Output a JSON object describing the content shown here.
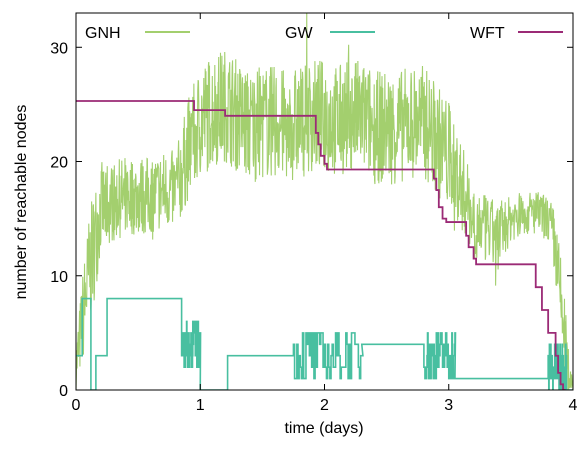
{
  "chart_data": {
    "type": "line",
    "xlabel": "time (days)",
    "ylabel": "number of reachable nodes",
    "xlim": [
      0,
      4
    ],
    "ylim": [
      0,
      33
    ],
    "xticks": [
      0,
      1,
      2,
      3,
      4
    ],
    "yticks": [
      0,
      10,
      20,
      30
    ],
    "xtick_labels": [
      "0",
      "1",
      "2",
      "3",
      "4"
    ],
    "ytick_labels": [
      "0",
      "10",
      "20",
      "30"
    ],
    "grid": false,
    "legend_position": "top",
    "series": [
      {
        "name": "GNH",
        "color": "#a3cf6e",
        "style": "noisy-band",
        "x": [
          0.0,
          0.05,
          0.1,
          0.15,
          0.2,
          0.3,
          0.4,
          0.5,
          0.6,
          0.7,
          0.8,
          0.85,
          0.9,
          1.0,
          1.1,
          1.2,
          1.3,
          1.4,
          1.5,
          1.6,
          1.7,
          1.8,
          1.9,
          2.0,
          2.1,
          2.2,
          2.3,
          2.4,
          2.5,
          2.6,
          2.7,
          2.8,
          2.9,
          3.0,
          3.1,
          3.2,
          3.3,
          3.4,
          3.5,
          3.6,
          3.7,
          3.8,
          3.85,
          3.9,
          3.95,
          4.0
        ],
        "center": [
          2,
          6,
          10,
          13,
          16,
          16.5,
          17,
          17,
          17,
          17.5,
          17.5,
          19,
          21,
          23.5,
          24.5,
          25,
          24,
          23,
          23.5,
          23.5,
          23,
          23.5,
          24,
          24,
          23.5,
          24,
          24,
          23,
          23,
          23,
          23.5,
          23.5,
          22,
          20.5,
          18,
          15,
          14,
          13.5,
          15,
          15.5,
          15.5,
          15,
          13,
          8,
          3,
          0
        ],
        "spread": [
          2,
          4,
          5,
          5,
          4,
          3.5,
          3.5,
          3.5,
          3.5,
          3.5,
          3.5,
          4,
          4.5,
          5,
          5,
          5,
          5,
          5,
          5,
          5,
          5,
          5,
          5,
          5,
          5,
          5,
          5,
          5,
          5,
          5,
          5,
          5,
          5,
          5,
          4,
          3,
          3,
          3,
          2,
          2,
          2,
          2,
          3,
          4,
          3,
          0
        ]
      },
      {
        "name": "GW",
        "color": "#48bfa0",
        "style": "step",
        "segments": [
          {
            "x": [
              0.0,
              0.05
            ],
            "y": 3
          },
          {
            "x": [
              0.05,
              0.12
            ],
            "y": 8
          },
          {
            "x": [
              0.12,
              0.16
            ],
            "y": 0
          },
          {
            "x": [
              0.16,
              0.25
            ],
            "y": 3
          },
          {
            "x": [
              0.25,
              0.85
            ],
            "y": 8
          },
          {
            "x": [
              0.85,
              1.0
            ],
            "y": 4,
            "noisy": true
          },
          {
            "x": [
              1.0,
              1.22
            ],
            "y": 0
          },
          {
            "x": [
              1.22,
              1.75
            ],
            "y": 3
          },
          {
            "x": [
              1.75,
              2.3
            ],
            "y": 3,
            "noisy": true
          },
          {
            "x": [
              2.3,
              2.8
            ],
            "y": 4
          },
          {
            "x": [
              2.8,
              3.05
            ],
            "y": 3,
            "noisy": true
          },
          {
            "x": [
              3.05,
              3.2
            ],
            "y": 1
          },
          {
            "x": [
              3.2,
              3.8
            ],
            "y": 1
          },
          {
            "x": [
              3.8,
              3.95
            ],
            "y": 2,
            "noisy": true
          },
          {
            "x": [
              3.95,
              4.0
            ],
            "y": 0
          }
        ]
      },
      {
        "name": "WFT",
        "color": "#9b2a76",
        "style": "step",
        "x": [
          0.0,
          0.9,
          0.95,
          1.2,
          1.93,
          1.95,
          1.97,
          2.0,
          2.02,
          2.04,
          2.06,
          2.85,
          2.88,
          2.9,
          2.92,
          2.95,
          2.98,
          3.1,
          3.14,
          3.16,
          3.2,
          3.22,
          3.65,
          3.7,
          3.75,
          3.8,
          3.86,
          3.88,
          3.9,
          3.92,
          3.94
        ],
        "y": [
          25.3,
          25.3,
          24.5,
          24.0,
          22.5,
          21.5,
          20.5,
          19.8,
          19.3,
          19.3,
          19.3,
          19.3,
          18.5,
          17.5,
          16.0,
          15.0,
          14.7,
          14.7,
          13.5,
          12.5,
          11.5,
          11.0,
          11.0,
          9.0,
          7.0,
          5.0,
          3.0,
          1.5,
          0.5,
          0.0,
          0.0
        ]
      }
    ]
  }
}
